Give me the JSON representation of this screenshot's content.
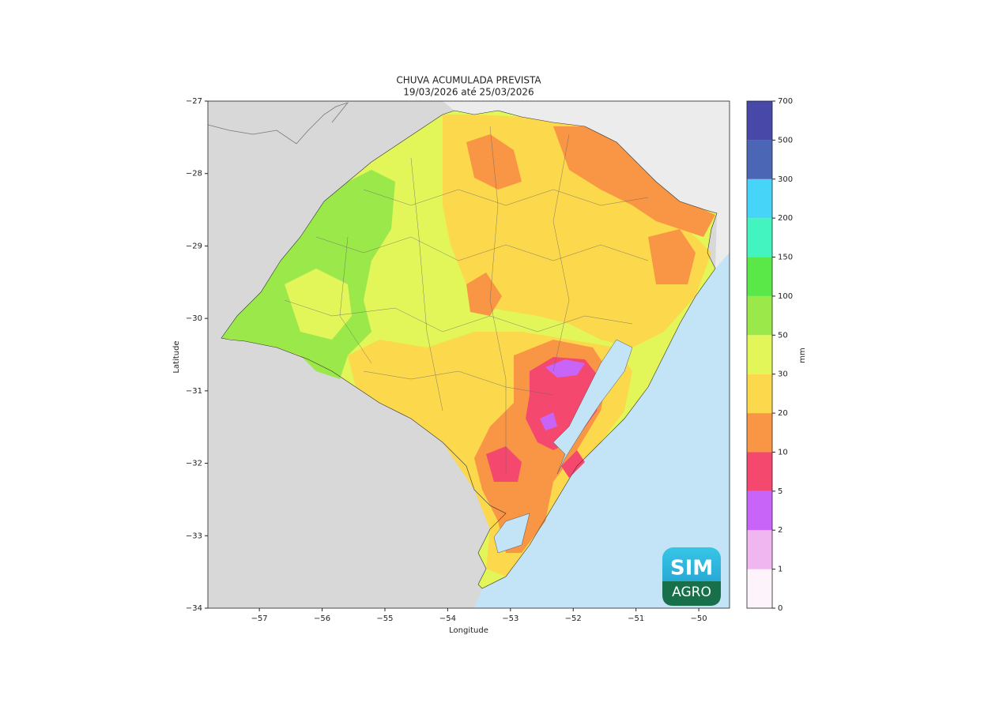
{
  "map": {
    "title": "CHUVA ACUMULADA PREVISTA",
    "subtitle": "19/03/2026 até 25/03/2026",
    "xlabel": "Longitude",
    "ylabel": "Latitude",
    "xlim": [
      -57.82,
      -49.51
    ],
    "ylim": [
      -34,
      -27
    ],
    "xticks": [
      {
        "value": -57,
        "label": "−57"
      },
      {
        "value": -56,
        "label": "−56"
      },
      {
        "value": -55,
        "label": "−55"
      },
      {
        "value": -54,
        "label": "−54"
      },
      {
        "value": -53,
        "label": "−53"
      },
      {
        "value": -52,
        "label": "−52"
      },
      {
        "value": -51,
        "label": "−51"
      },
      {
        "value": -50,
        "label": "−50"
      }
    ],
    "yticks": [
      {
        "value": -27,
        "label": "−27"
      },
      {
        "value": -28,
        "label": "−28"
      },
      {
        "value": -29,
        "label": "−29"
      },
      {
        "value": -30,
        "label": "−30"
      },
      {
        "value": -31,
        "label": "−31"
      },
      {
        "value": -32,
        "label": "−32"
      },
      {
        "value": -33,
        "label": "−33"
      },
      {
        "value": -34,
        "label": "−34"
      }
    ],
    "colorbar": {
      "label": "mm",
      "ticks": [
        0,
        1,
        2,
        5,
        10,
        20,
        30,
        50,
        100,
        150,
        200,
        300,
        500,
        700
      ],
      "colors": [
        "#fdf3fb",
        "#f0b6f0",
        "#c864f8",
        "#f4486e",
        "#f89646",
        "#fcd84c",
        "#e2f65a",
        "#9ae84a",
        "#5ae848",
        "#44f4c0",
        "#46d4f8",
        "#4a66b4",
        "#4848a8"
      ]
    },
    "logo": {
      "top": "SIM",
      "bottom": "AGRO"
    }
  }
}
